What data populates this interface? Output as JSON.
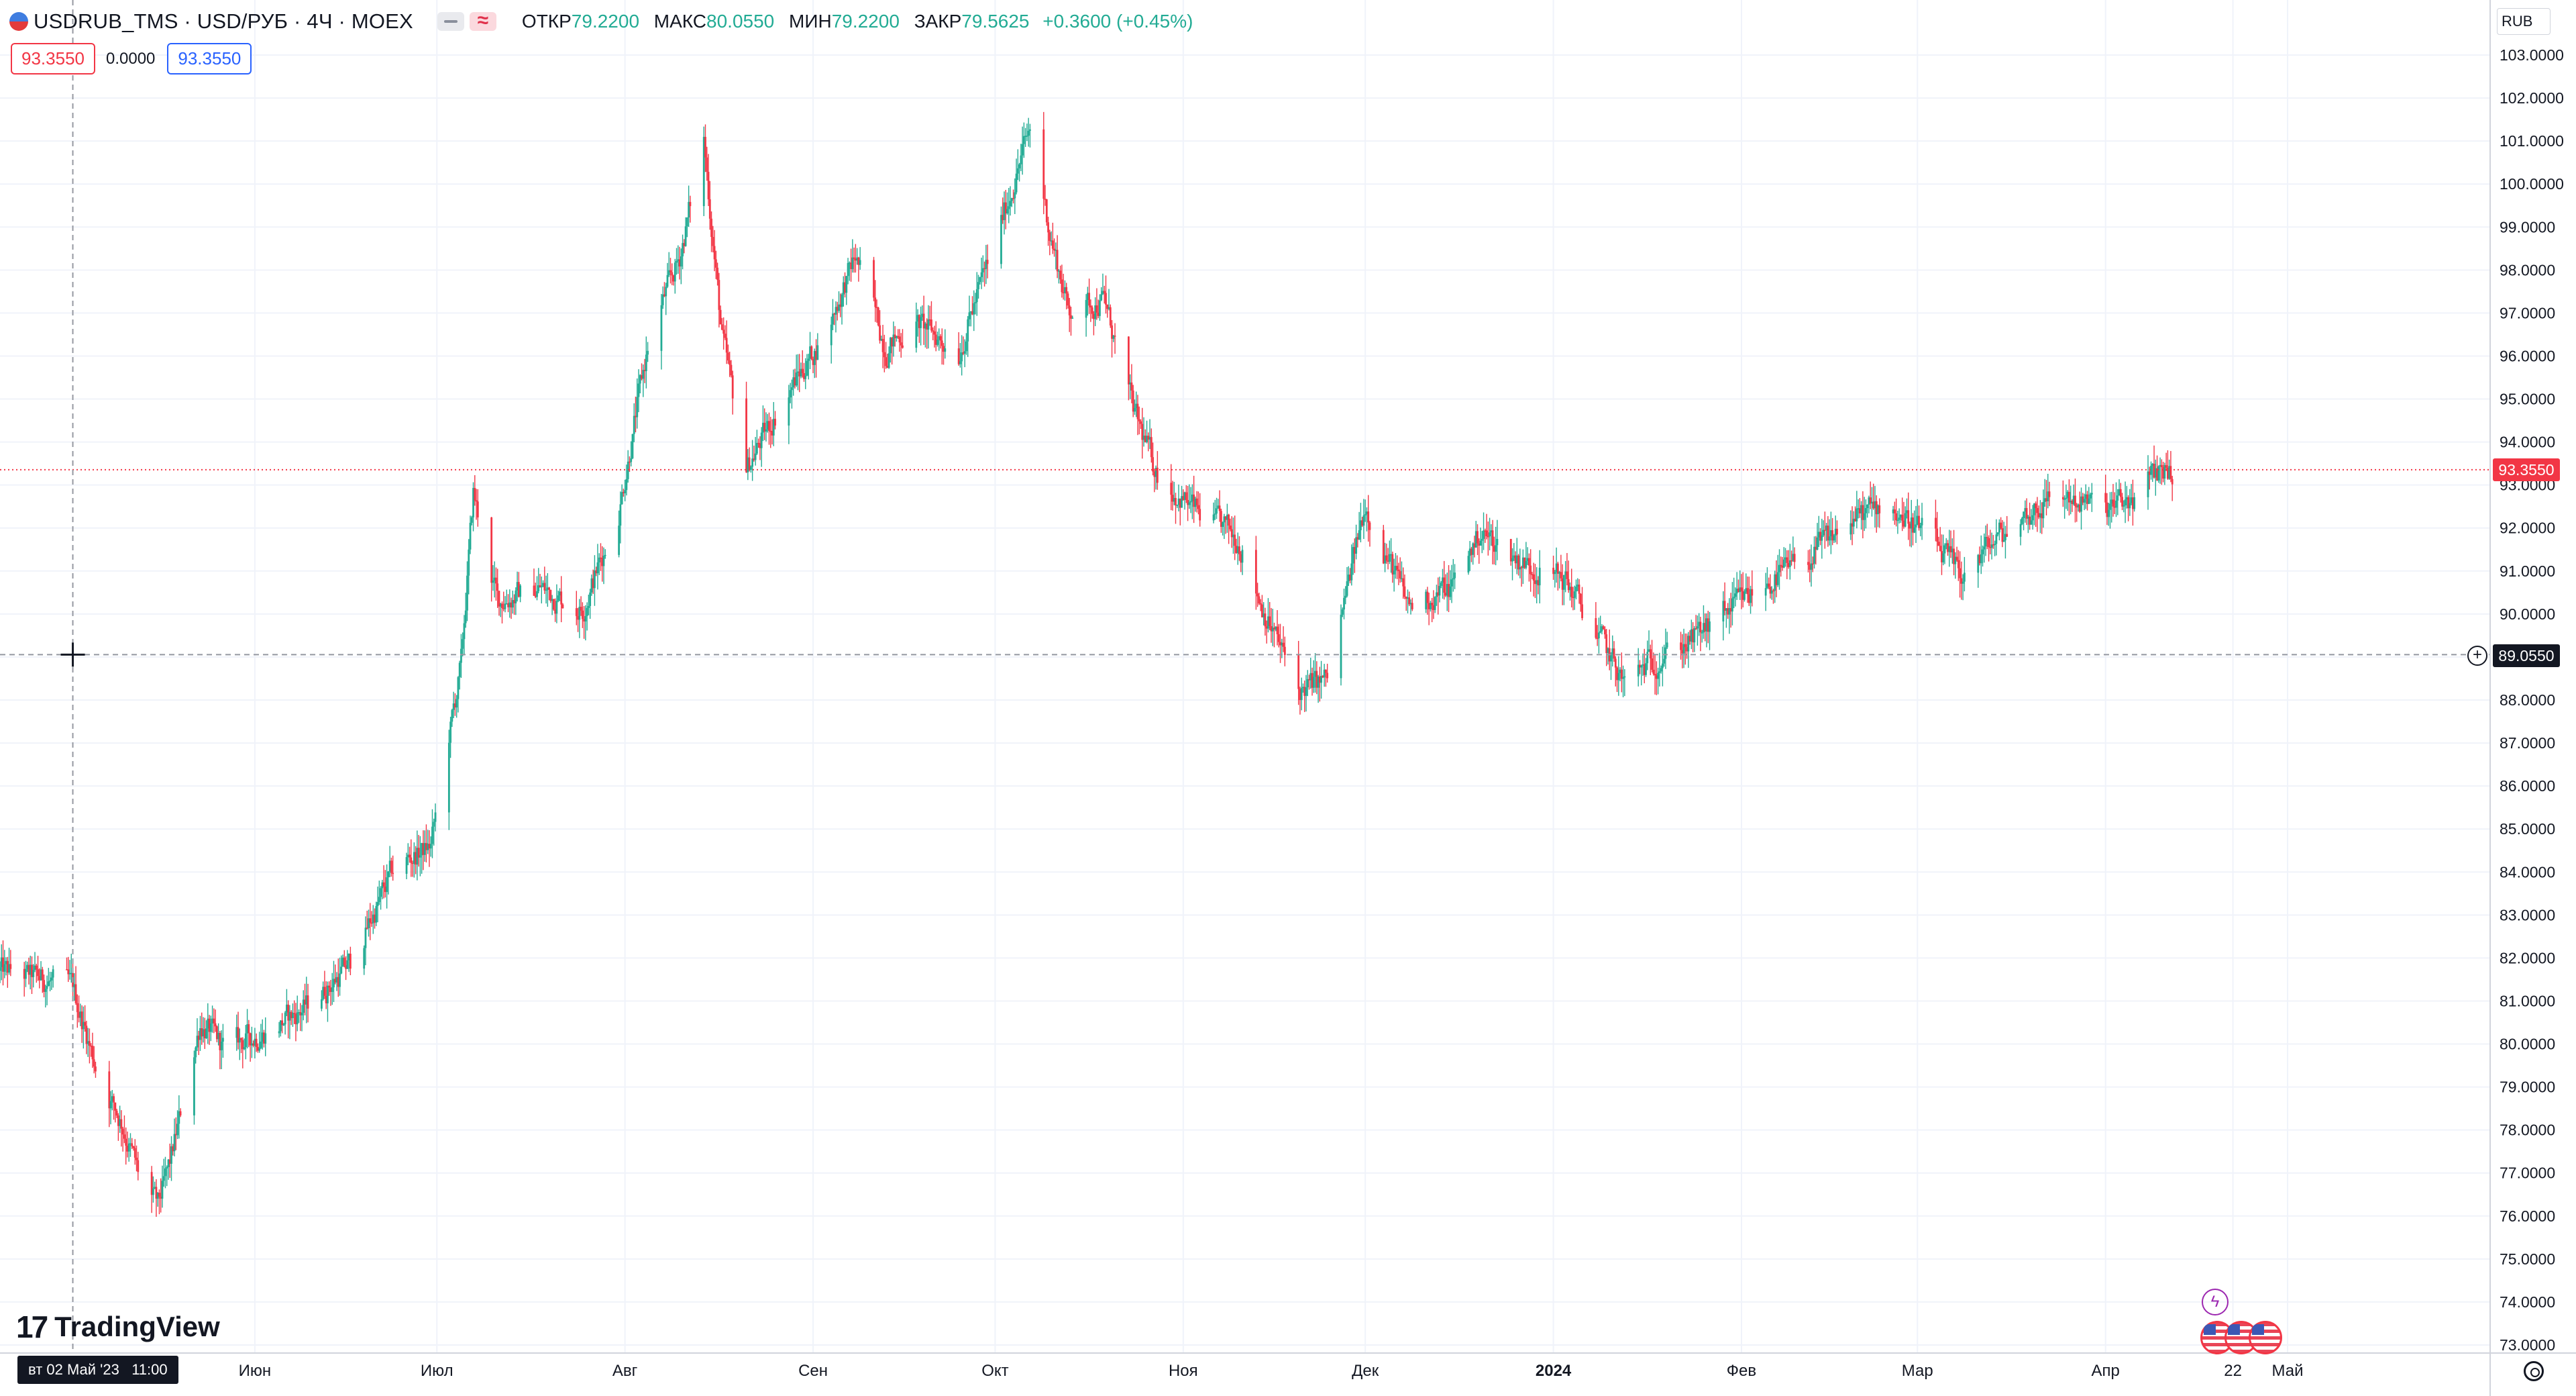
{
  "header": {
    "title": "USDRUB_TMS · USD/РУБ · 4Ч · MOEX",
    "ohlc": [
      {
        "label": "ОТКР",
        "value": "79.2200"
      },
      {
        "label": "МАКС",
        "value": "80.0550"
      },
      {
        "label": "МИН",
        "value": "79.2200"
      },
      {
        "label": "ЗАКР",
        "value": "79.5625"
      }
    ],
    "change": "+0.3600 (+0.45%)",
    "sell_price": "93.3550",
    "spread": "0.0000",
    "buy_price": "93.3550"
  },
  "currency": "RUB",
  "last_price_label": "93.3550",
  "crosshair_price_label": "89.0550",
  "crosshair_date_label": "вт 02 Май '23   11:00",
  "brand": "TradingView",
  "colors": {
    "up": "#22ab94",
    "down": "#f23645",
    "grid": "#f0f3fa",
    "text": "#131722"
  },
  "chart_data": {
    "type": "candlestick",
    "symbol": "USDRUB_TMS",
    "timeframe": "4Ч",
    "ylim": [
      73,
      103
    ],
    "yticks": [
      "73.0000",
      "74.0000",
      "75.0000",
      "76.0000",
      "77.0000",
      "78.0000",
      "79.0000",
      "80.0000",
      "81.0000",
      "82.0000",
      "83.0000",
      "84.0000",
      "85.0000",
      "86.0000",
      "87.0000",
      "88.0000",
      "89.0000",
      "90.0000",
      "91.0000",
      "92.0000",
      "93.0000",
      "94.0000",
      "95.0000",
      "96.0000",
      "97.0000",
      "98.0000",
      "99.0000",
      "100.0000",
      "101.0000",
      "102.0000",
      "103.0000"
    ],
    "xlim": [
      "2023-04-20",
      "2024-05-22"
    ],
    "xticks": [
      {
        "date": "2023-06-01",
        "label": "Июн"
      },
      {
        "date": "2023-07-01",
        "label": "Июл"
      },
      {
        "date": "2023-08-01",
        "label": "Авг"
      },
      {
        "date": "2023-09-01",
        "label": "Сен"
      },
      {
        "date": "2023-10-01",
        "label": "Окт"
      },
      {
        "date": "2023-11-01",
        "label": "Ноя"
      },
      {
        "date": "2023-12-01",
        "label": "Дек"
      },
      {
        "date": "2024-01-01",
        "label": "2024"
      },
      {
        "date": "2024-02-01",
        "label": "Фев"
      },
      {
        "date": "2024-03-01",
        "label": "Мар"
      },
      {
        "date": "2024-04-01",
        "label": "Апр"
      },
      {
        "date": "2024-04-22",
        "label": "22"
      },
      {
        "date": "2024-05-01",
        "label": "Май"
      }
    ],
    "path": [
      [
        "2023-04-20",
        81.7
      ],
      [
        "2023-04-27",
        81.5
      ],
      [
        "2023-05-02",
        81.3
      ],
      [
        "2023-05-06",
        79.4
      ],
      [
        "2023-05-10",
        78.2
      ],
      [
        "2023-05-13",
        76.9
      ],
      [
        "2023-05-16",
        76.2
      ],
      [
        "2023-05-18",
        77.2
      ],
      [
        "2023-05-23",
        80.5
      ],
      [
        "2023-05-27",
        79.9
      ],
      [
        "2023-06-03",
        80.3
      ],
      [
        "2023-06-10",
        80.9
      ],
      [
        "2023-06-17",
        81.9
      ],
      [
        "2023-06-24",
        84.1
      ],
      [
        "2023-06-30",
        84.6
      ],
      [
        "2023-07-05",
        88.8
      ],
      [
        "2023-07-07",
        92.8
      ],
      [
        "2023-07-11",
        90.3
      ],
      [
        "2023-07-18",
        90.6
      ],
      [
        "2023-07-25",
        90.1
      ],
      [
        "2023-07-31",
        92.4
      ],
      [
        "2023-08-05",
        96.4
      ],
      [
        "2023-08-10",
        98.3
      ],
      [
        "2023-08-14",
        101.0
      ],
      [
        "2023-08-17",
        96.4
      ],
      [
        "2023-08-21",
        93.4
      ],
      [
        "2023-08-28",
        95.2
      ],
      [
        "2023-09-03",
        96.5
      ],
      [
        "2023-09-08",
        98.3
      ],
      [
        "2023-09-13",
        96.2
      ],
      [
        "2023-09-18",
        96.8
      ],
      [
        "2023-09-25",
        96.1
      ],
      [
        "2023-10-02",
        99.1
      ],
      [
        "2023-10-07",
        101.4
      ],
      [
        "2023-10-10",
        98.9
      ],
      [
        "2023-10-13",
        97.1
      ],
      [
        "2023-10-19",
        97.3
      ],
      [
        "2023-10-24",
        94.6
      ],
      [
        "2023-10-28",
        93.2
      ],
      [
        "2023-11-03",
        92.4
      ],
      [
        "2023-11-10",
        91.8
      ],
      [
        "2023-11-14",
        90.2
      ],
      [
        "2023-11-20",
        88.2
      ],
      [
        "2023-11-25",
        88.5
      ],
      [
        "2023-12-01",
        92.6
      ],
      [
        "2023-12-08",
        90.2
      ],
      [
        "2023-12-15",
        90.6
      ],
      [
        "2023-12-20",
        91.9
      ],
      [
        "2023-12-27",
        91.2
      ],
      [
        "2024-01-03",
        90.8
      ],
      [
        "2024-01-08",
        89.6
      ],
      [
        "2024-01-13",
        88.3
      ],
      [
        "2024-01-17",
        88.9
      ],
      [
        "2024-01-24",
        89.4
      ],
      [
        "2024-01-30",
        90.1
      ],
      [
        "2024-02-04",
        90.6
      ],
      [
        "2024-02-12",
        91.3
      ],
      [
        "2024-02-18",
        92.1
      ],
      [
        "2024-02-25",
        92.6
      ],
      [
        "2024-03-02",
        91.9
      ],
      [
        "2024-03-08",
        90.9
      ],
      [
        "2024-03-13",
        91.6
      ],
      [
        "2024-03-18",
        92.2
      ],
      [
        "2024-03-24",
        92.8
      ],
      [
        "2024-04-01",
        92.4
      ],
      [
        "2024-04-06",
        92.7
      ],
      [
        "2024-04-10",
        93.4
      ],
      [
        "2024-04-12",
        93.36
      ]
    ],
    "last_price": 93.355,
    "crosshair": {
      "date": "2023-05-02",
      "price": 89.055
    }
  }
}
